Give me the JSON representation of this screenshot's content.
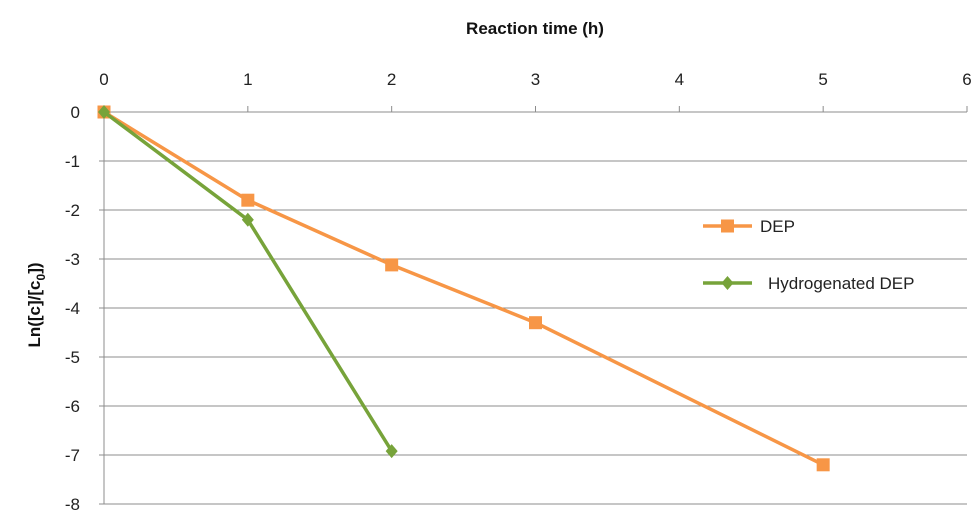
{
  "chart_data": {
    "type": "line",
    "xlabel": "Reaction time (h)",
    "ylabel_main": "Ln([c]/[c",
    "ylabel_sub": "0",
    "ylabel_end": "])",
    "xlim": [
      0,
      6
    ],
    "ylim": [
      -8,
      0
    ],
    "x_ticks": [
      "0",
      "1",
      "2",
      "3",
      "4",
      "5",
      "6"
    ],
    "y_ticks": [
      "0",
      "-1",
      "-2",
      "-3",
      "-4",
      "-5",
      "-6",
      "-7",
      "-8"
    ],
    "x_axis_position": "top",
    "grid": true,
    "legend_position": "right",
    "series": [
      {
        "name": "DEP",
        "color": "#F79646",
        "marker": "square",
        "x": [
          0,
          1,
          2,
          3,
          5
        ],
        "y": [
          0,
          -1.8,
          -3.12,
          -4.3,
          -7.2
        ]
      },
      {
        "name": "Hydrogenated DEP",
        "color": "#77A33A",
        "marker": "diamond",
        "x": [
          0,
          1,
          2
        ],
        "y": [
          0,
          -2.2,
          -6.92
        ]
      }
    ]
  }
}
